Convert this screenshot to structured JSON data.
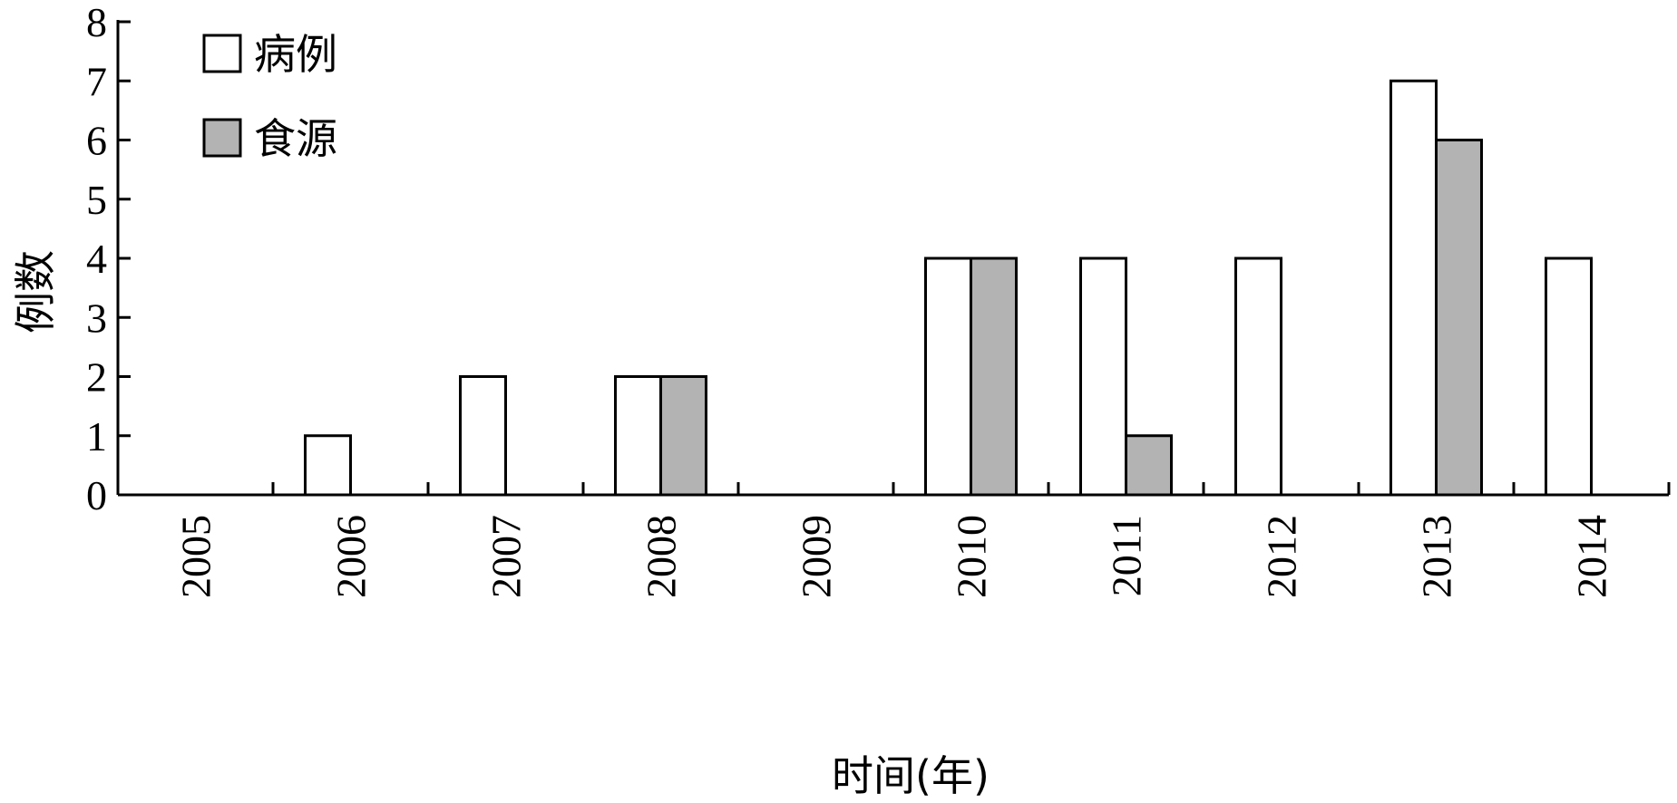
{
  "chart_data": {
    "type": "bar",
    "xlabel": "时间(年)",
    "ylabel": "例数",
    "ylim": [
      0,
      8
    ],
    "yticks": [
      "0",
      "1",
      "2",
      "3",
      "4",
      "5",
      "6",
      "7",
      "8"
    ],
    "categories": [
      "2005",
      "2006",
      "2007",
      "2008",
      "2009",
      "2010",
      "2011",
      "2012",
      "2013",
      "2014"
    ],
    "series": [
      {
        "name": "病例",
        "color": "#ffffff",
        "values": [
          0,
          1,
          2,
          2,
          0,
          4,
          4,
          4,
          7,
          4
        ]
      },
      {
        "name": "食源",
        "color": "#b3b3b3",
        "values": [
          0,
          0,
          0,
          2,
          0,
          4,
          1,
          0,
          6,
          0
        ]
      }
    ],
    "legend_position": "top-left",
    "grid": false
  }
}
